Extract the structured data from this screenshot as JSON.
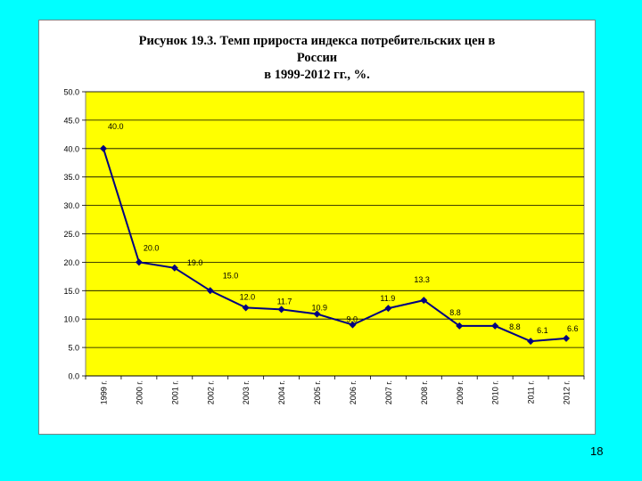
{
  "title_lines": [
    "Рисунок 19.3. Темп прироста индекса потребительских цен в",
    "России",
    "в 1999-2012 гг., %."
  ],
  "page_number": "18",
  "colors": {
    "slide_background": "#00ffff",
    "plot_background": "#ffff00",
    "series_line": "#000080"
  },
  "chart_data": {
    "type": "line",
    "title": "Рисунок 19.3. Темп прироста индекса потребительских цен в России в 1999-2012 гг., %.",
    "xlabel": "",
    "ylabel": "",
    "categories": [
      "1999 г.",
      "2000 г.",
      "2001 г.",
      "2002 г.",
      "2003 г.",
      "2004 г.",
      "2005 г.",
      "2006 г.",
      "2007 г.",
      "2008 г.",
      "2009 г.",
      "2010 г.",
      "2011 г.",
      "2012 г."
    ],
    "values": [
      40.0,
      20.0,
      19.0,
      15.0,
      12.0,
      11.7,
      10.9,
      9.0,
      11.9,
      13.3,
      8.8,
      8.8,
      6.1,
      6.6
    ],
    "data_labels": [
      "40.0",
      "20.0",
      "19.0",
      "15.0",
      "12.0",
      "11.7",
      "10.9",
      "9.0",
      "11.9",
      "13.3",
      "8.8",
      "8.8",
      "6.1",
      "6.6"
    ],
    "ylim": [
      0,
      50
    ],
    "yticks": [
      "0.0",
      "5.0",
      "10.0",
      "15.0",
      "20.0",
      "25.0",
      "30.0",
      "35.0",
      "40.0",
      "45.0",
      "50.0"
    ],
    "grid": true,
    "legend": "none"
  }
}
